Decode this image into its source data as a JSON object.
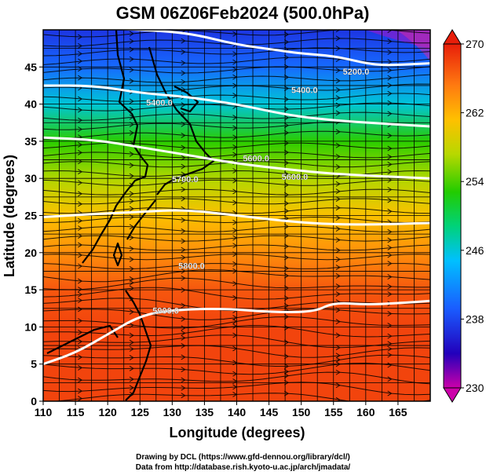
{
  "chart_data": {
    "type": "heatmap",
    "title": "GSM 06Z06Feb2024 (500.0hPa)",
    "xlabel": "Longitude (degrees)",
    "ylabel": "Latitude  (degrees)",
    "xlim": [
      110,
      170
    ],
    "ylim": [
      0,
      50
    ],
    "x_ticks": [
      110,
      115,
      120,
      125,
      130,
      135,
      140,
      145,
      150,
      155,
      160,
      165
    ],
    "y_ticks": [
      0,
      5,
      10,
      15,
      20,
      25,
      30,
      35,
      40,
      45
    ],
    "colorbar": {
      "min": 230,
      "max": 270,
      "ticks": [
        230,
        238,
        246,
        254,
        262,
        270
      ],
      "colors": [
        "#cc00aa",
        "#2200bb",
        "#1a5cff",
        "#00c0ff",
        "#00d27a",
        "#22cc00",
        "#b8d800",
        "#ffc000",
        "#ff7a10",
        "#e81e0a"
      ]
    },
    "temperature_by_latitude": [
      {
        "lat": 50,
        "value": 237
      },
      {
        "lat": 45,
        "value": 240
      },
      {
        "lat": 40,
        "value": 246
      },
      {
        "lat": 35,
        "value": 253
      },
      {
        "lat": 30,
        "value": 257
      },
      {
        "lat": 25,
        "value": 261
      },
      {
        "lat": 20,
        "value": 264
      },
      {
        "lat": 15,
        "value": 267
      },
      {
        "lat": 10,
        "value": 268
      },
      {
        "lat": 5,
        "value": 268
      },
      {
        "lat": 0,
        "value": 268
      }
    ],
    "contours": [
      {
        "label": "5200.0",
        "points": [
          [
            110,
            50.5
          ],
          [
            126,
            50.0
          ],
          [
            133,
            49.5
          ],
          [
            140,
            48.0
          ],
          [
            146,
            47.3
          ],
          [
            150,
            46.8
          ],
          [
            155,
            46.5
          ],
          [
            160,
            45.5
          ],
          [
            163,
            45.2
          ],
          [
            170,
            45.5
          ]
        ]
      },
      {
        "label": "5400.0",
        "points": [
          [
            110,
            42.5
          ],
          [
            118,
            42.5
          ],
          [
            125,
            41.5
          ],
          [
            132,
            41.0
          ],
          [
            140,
            40.0
          ],
          [
            148,
            38.5
          ],
          [
            155,
            37.8
          ],
          [
            162,
            37.4
          ],
          [
            170,
            37.0
          ]
        ]
      },
      {
        "label": "5600.0",
        "points": [
          [
            110,
            35.5
          ],
          [
            118,
            35.2
          ],
          [
            125,
            34.2
          ],
          [
            132,
            33.2
          ],
          [
            140,
            32.0
          ],
          [
            148,
            31.2
          ],
          [
            155,
            30.6
          ],
          [
            162,
            30.3
          ],
          [
            170,
            30.0
          ]
        ]
      },
      {
        "label": "5800.0",
        "points": [
          [
            110,
            24.8
          ],
          [
            118,
            25.2
          ],
          [
            125,
            25.5
          ],
          [
            132,
            25.8
          ],
          [
            140,
            25.0
          ],
          [
            148,
            24.2
          ],
          [
            155,
            23.8
          ],
          [
            162,
            23.8
          ],
          [
            170,
            24.0
          ]
        ]
      },
      {
        "label": "5900.0",
        "points": [
          [
            110,
            5.0
          ],
          [
            115,
            6.5
          ],
          [
            120,
            9.0
          ],
          [
            125,
            11.5
          ],
          [
            130,
            12.3
          ],
          [
            138,
            12.5
          ],
          [
            145,
            12.0
          ],
          [
            152,
            12.0
          ],
          [
            155,
            13.3
          ],
          [
            160,
            13.0
          ],
          [
            165,
            13.2
          ],
          [
            170,
            13.5
          ]
        ]
      }
    ],
    "contour_labels": [
      {
        "text": "5200.0",
        "lon": 158.5,
        "lat": 44.0
      },
      {
        "text": "5400.0",
        "lon": 150.5,
        "lat": 41.5
      },
      {
        "text": "5400.0",
        "lon": 128.0,
        "lat": 39.8
      },
      {
        "text": "5600.0",
        "lon": 143.0,
        "lat": 32.3
      },
      {
        "text": "5600.0",
        "lon": 149.0,
        "lat": 29.8
      },
      {
        "text": "5700.0",
        "lon": 132.0,
        "lat": 29.5
      },
      {
        "text": "5800.0",
        "lon": 133.0,
        "lat": 17.8
      },
      {
        "text": "5900.0",
        "lon": 129.0,
        "lat": 11.8
      }
    ]
  },
  "credits": {
    "line1": "Drawing by DCL (https://www.gfd-dennou.org/library/dcl/)",
    "line2": "Data from http://database.rish.kyoto-u.ac.jp/arch/jmadata/"
  }
}
